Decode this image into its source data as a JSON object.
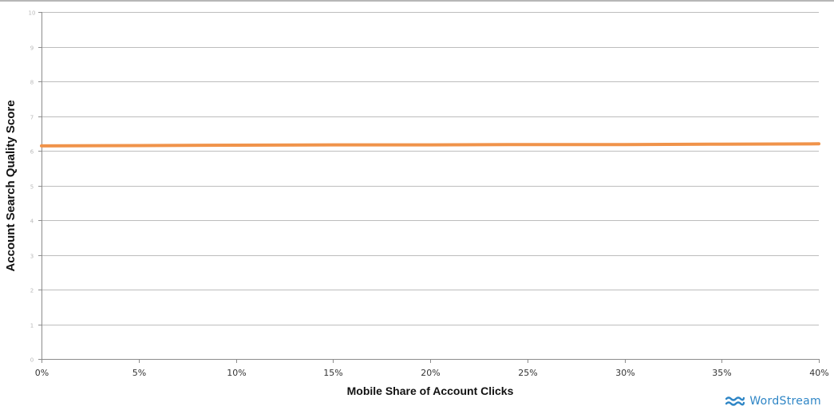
{
  "chart_data": {
    "type": "line",
    "title": "",
    "xlabel": "Mobile Share of Account Clicks",
    "ylabel": "Account Search Quality Score",
    "x": [
      0,
      5,
      10,
      15,
      20,
      25,
      30,
      35,
      40
    ],
    "x_tick_labels": [
      "0%",
      "5%",
      "10%",
      "15%",
      "20%",
      "25%",
      "30%",
      "35%",
      "40%"
    ],
    "xlim": [
      0,
      40
    ],
    "ylim": [
      0,
      10
    ],
    "y_tick_values": [
      0,
      1,
      2,
      3,
      4,
      5,
      6,
      7,
      8,
      9,
      10
    ],
    "grid": "horizontal",
    "legend": "none",
    "series": [
      {
        "values": [
          6.14,
          6.15,
          6.16,
          6.17,
          6.17,
          6.18,
          6.18,
          6.19,
          6.2
        ]
      }
    ],
    "colors": {
      "line": "#f0934a",
      "grid": "#bdbdbd",
      "axis": "#8c8c8c"
    }
  },
  "brand": {
    "name": "WordStream",
    "icon": "wave-icon",
    "color": "#2f86c6"
  }
}
